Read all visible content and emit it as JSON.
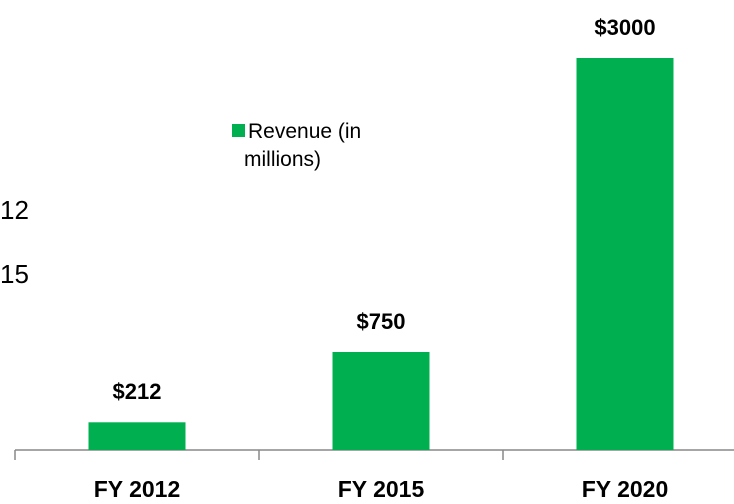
{
  "chart_data": {
    "type": "bar",
    "categories": [
      "FY 2012",
      "FY 2015",
      "FY 2020"
    ],
    "series": [
      {
        "name": "Revenue (in millions)",
        "color": "#00b050",
        "values": [
          212,
          750,
          3000
        ],
        "value_labels": [
          "$212",
          "$750",
          "$3000"
        ]
      }
    ],
    "ylim": [
      0,
      3000
    ],
    "annotations": [
      "12",
      "15"
    ]
  }
}
